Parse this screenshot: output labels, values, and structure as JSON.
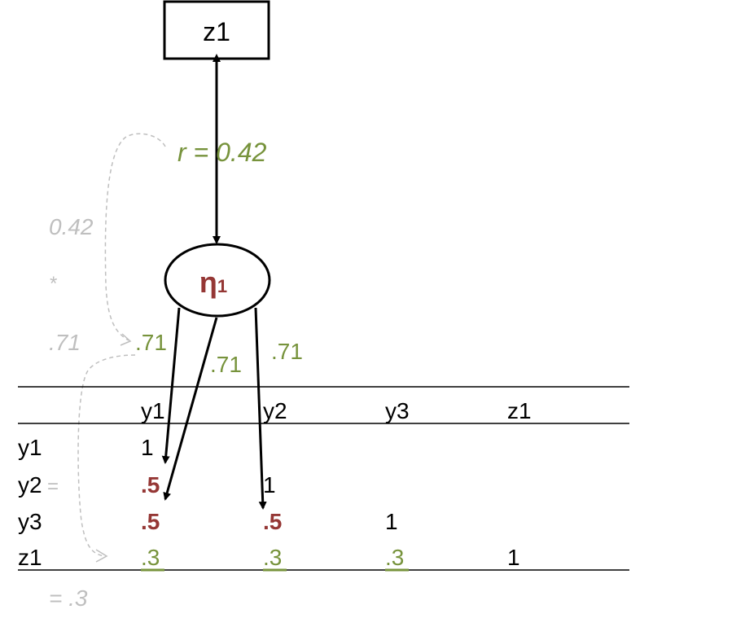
{
  "colors": {
    "green": "#77933c",
    "red": "#953735",
    "grey": "#bfbfbf",
    "black": "#000000"
  },
  "diagram": {
    "observed_box": {
      "label": "z1"
    },
    "latent": {
      "symbol": "η",
      "subscript": "1"
    },
    "correlation_label": "r = 0.42",
    "loadings": [
      ".71",
      ".71",
      ".71"
    ],
    "side_calc": {
      "first": "0.42",
      "op": "*",
      "second": ".71",
      "result": "= .3",
      "equals_hint": "="
    }
  },
  "table": {
    "columns": [
      "y1",
      "y2",
      "y3",
      "z1"
    ],
    "rows": [
      {
        "label": "y1",
        "cells": [
          "1",
          "",
          "",
          ""
        ]
      },
      {
        "label": "y2",
        "cells": [
          ".5",
          "1",
          "",
          ""
        ]
      },
      {
        "label": "y3",
        "cells": [
          ".5",
          ".5",
          "1",
          ""
        ]
      },
      {
        "label": "z1",
        "cells": [
          ".3",
          ".3",
          ".3",
          "1"
        ]
      }
    ]
  }
}
